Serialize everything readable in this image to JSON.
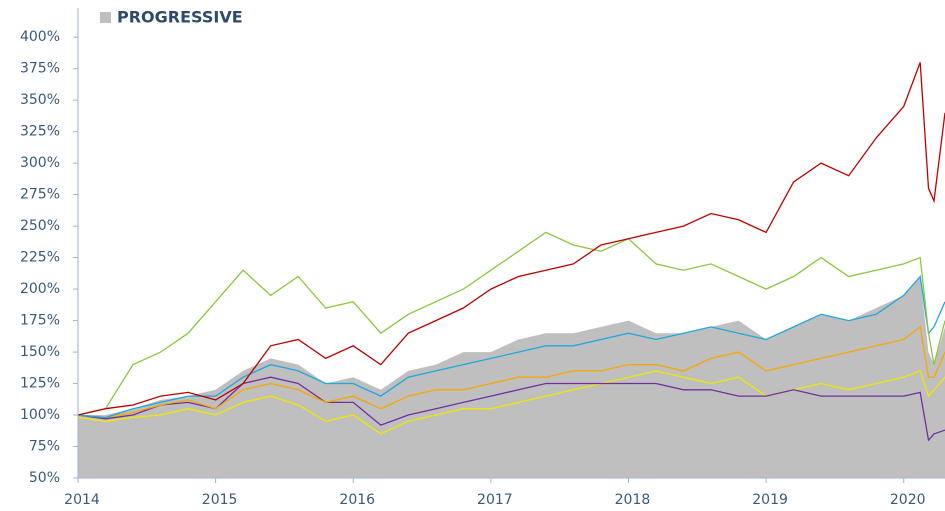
{
  "chart_data": {
    "type": "line",
    "x": [
      2014.0,
      2014.2,
      2014.4,
      2014.6,
      2014.8,
      2015.0,
      2015.2,
      2015.4,
      2015.6,
      2015.8,
      2016.0,
      2016.2,
      2016.4,
      2016.6,
      2016.8,
      2017.0,
      2017.2,
      2017.4,
      2017.6,
      2017.8,
      2018.0,
      2018.2,
      2018.4,
      2018.6,
      2018.8,
      2019.0,
      2019.2,
      2019.4,
      2019.6,
      2019.8,
      2020.0,
      2020.12,
      2020.18,
      2020.22,
      2020.3
    ],
    "series": [
      {
        "name": "PROGRESSIVE",
        "style": "area",
        "color": "#bfbfbf",
        "values": [
          100,
          100,
          105,
          112,
          115,
          120,
          135,
          145,
          140,
          125,
          130,
          120,
          135,
          140,
          150,
          150,
          160,
          165,
          165,
          170,
          175,
          165,
          165,
          170,
          175,
          160,
          170,
          180,
          175,
          185,
          195,
          210,
          150,
          140,
          170
        ]
      },
      {
        "style": "line",
        "color": "#f0e800",
        "values": [
          98,
          95,
          98,
          100,
          105,
          100,
          110,
          115,
          108,
          95,
          100,
          85,
          95,
          100,
          105,
          105,
          110,
          115,
          120,
          125,
          130,
          135,
          130,
          125,
          130,
          115,
          120,
          125,
          120,
          125,
          130,
          135,
          115,
          120,
          130
        ]
      },
      {
        "style": "line",
        "color": "#7030a0",
        "values": [
          100,
          97,
          100,
          108,
          110,
          105,
          125,
          130,
          125,
          110,
          110,
          92,
          100,
          105,
          110,
          115,
          120,
          125,
          125,
          125,
          125,
          125,
          120,
          120,
          115,
          115,
          120,
          115,
          115,
          115,
          115,
          118,
          80,
          85,
          88
        ]
      },
      {
        "style": "line",
        "color": "#f5a800",
        "values": [
          100,
          98,
          102,
          108,
          112,
          105,
          120,
          125,
          120,
          110,
          115,
          105,
          115,
          120,
          120,
          125,
          130,
          130,
          135,
          135,
          140,
          140,
          135,
          145,
          150,
          135,
          140,
          145,
          150,
          155,
          160,
          170,
          130,
          130,
          150
        ]
      },
      {
        "style": "line",
        "color": "#1fa7e0",
        "values": [
          100,
          98,
          105,
          110,
          115,
          115,
          130,
          140,
          135,
          125,
          125,
          115,
          130,
          135,
          140,
          145,
          150,
          155,
          155,
          160,
          165,
          160,
          165,
          170,
          165,
          160,
          170,
          180,
          175,
          180,
          195,
          210,
          165,
          170,
          190
        ]
      },
      {
        "style": "line",
        "color": "#8dc63f",
        "values": [
          100,
          105,
          140,
          150,
          165,
          190,
          215,
          195,
          210,
          185,
          190,
          165,
          180,
          190,
          200,
          215,
          230,
          245,
          235,
          230,
          240,
          220,
          215,
          220,
          210,
          200,
          210,
          225,
          210,
          215,
          220,
          225,
          165,
          140,
          175
        ]
      },
      {
        "style": "line",
        "color": "#c00000",
        "values": [
          100,
          105,
          108,
          115,
          118,
          112,
          125,
          155,
          160,
          145,
          155,
          140,
          165,
          175,
          185,
          200,
          210,
          215,
          220,
          235,
          240,
          245,
          250,
          260,
          255,
          245,
          285,
          300,
          290,
          320,
          345,
          380,
          280,
          270,
          340
        ]
      }
    ],
    "xlim": [
      2014,
      2020.3
    ],
    "xticks": [
      2014,
      2015,
      2016,
      2017,
      2018,
      2019,
      2020
    ],
    "ylim": [
      50,
      420
    ],
    "yticks": [
      {
        "value": 50,
        "label": "50%"
      },
      {
        "value": 75,
        "label": "75%"
      },
      {
        "value": 100,
        "label": "100%"
      },
      {
        "value": 125,
        "label": "125%"
      },
      {
        "value": 150,
        "label": "150%"
      },
      {
        "value": 175,
        "label": "175%"
      },
      {
        "value": 200,
        "label": "200%"
      },
      {
        "value": 225,
        "label": "225%"
      },
      {
        "value": 250,
        "label": "250%"
      },
      {
        "value": 275,
        "label": "275%"
      },
      {
        "value": 300,
        "label": "300%"
      },
      {
        "value": 325,
        "label": "325%"
      },
      {
        "value": 350,
        "label": "350%"
      },
      {
        "value": 375,
        "label": "375%"
      },
      {
        "value": 400,
        "label": "400%"
      }
    ],
    "legend": "top-left"
  }
}
